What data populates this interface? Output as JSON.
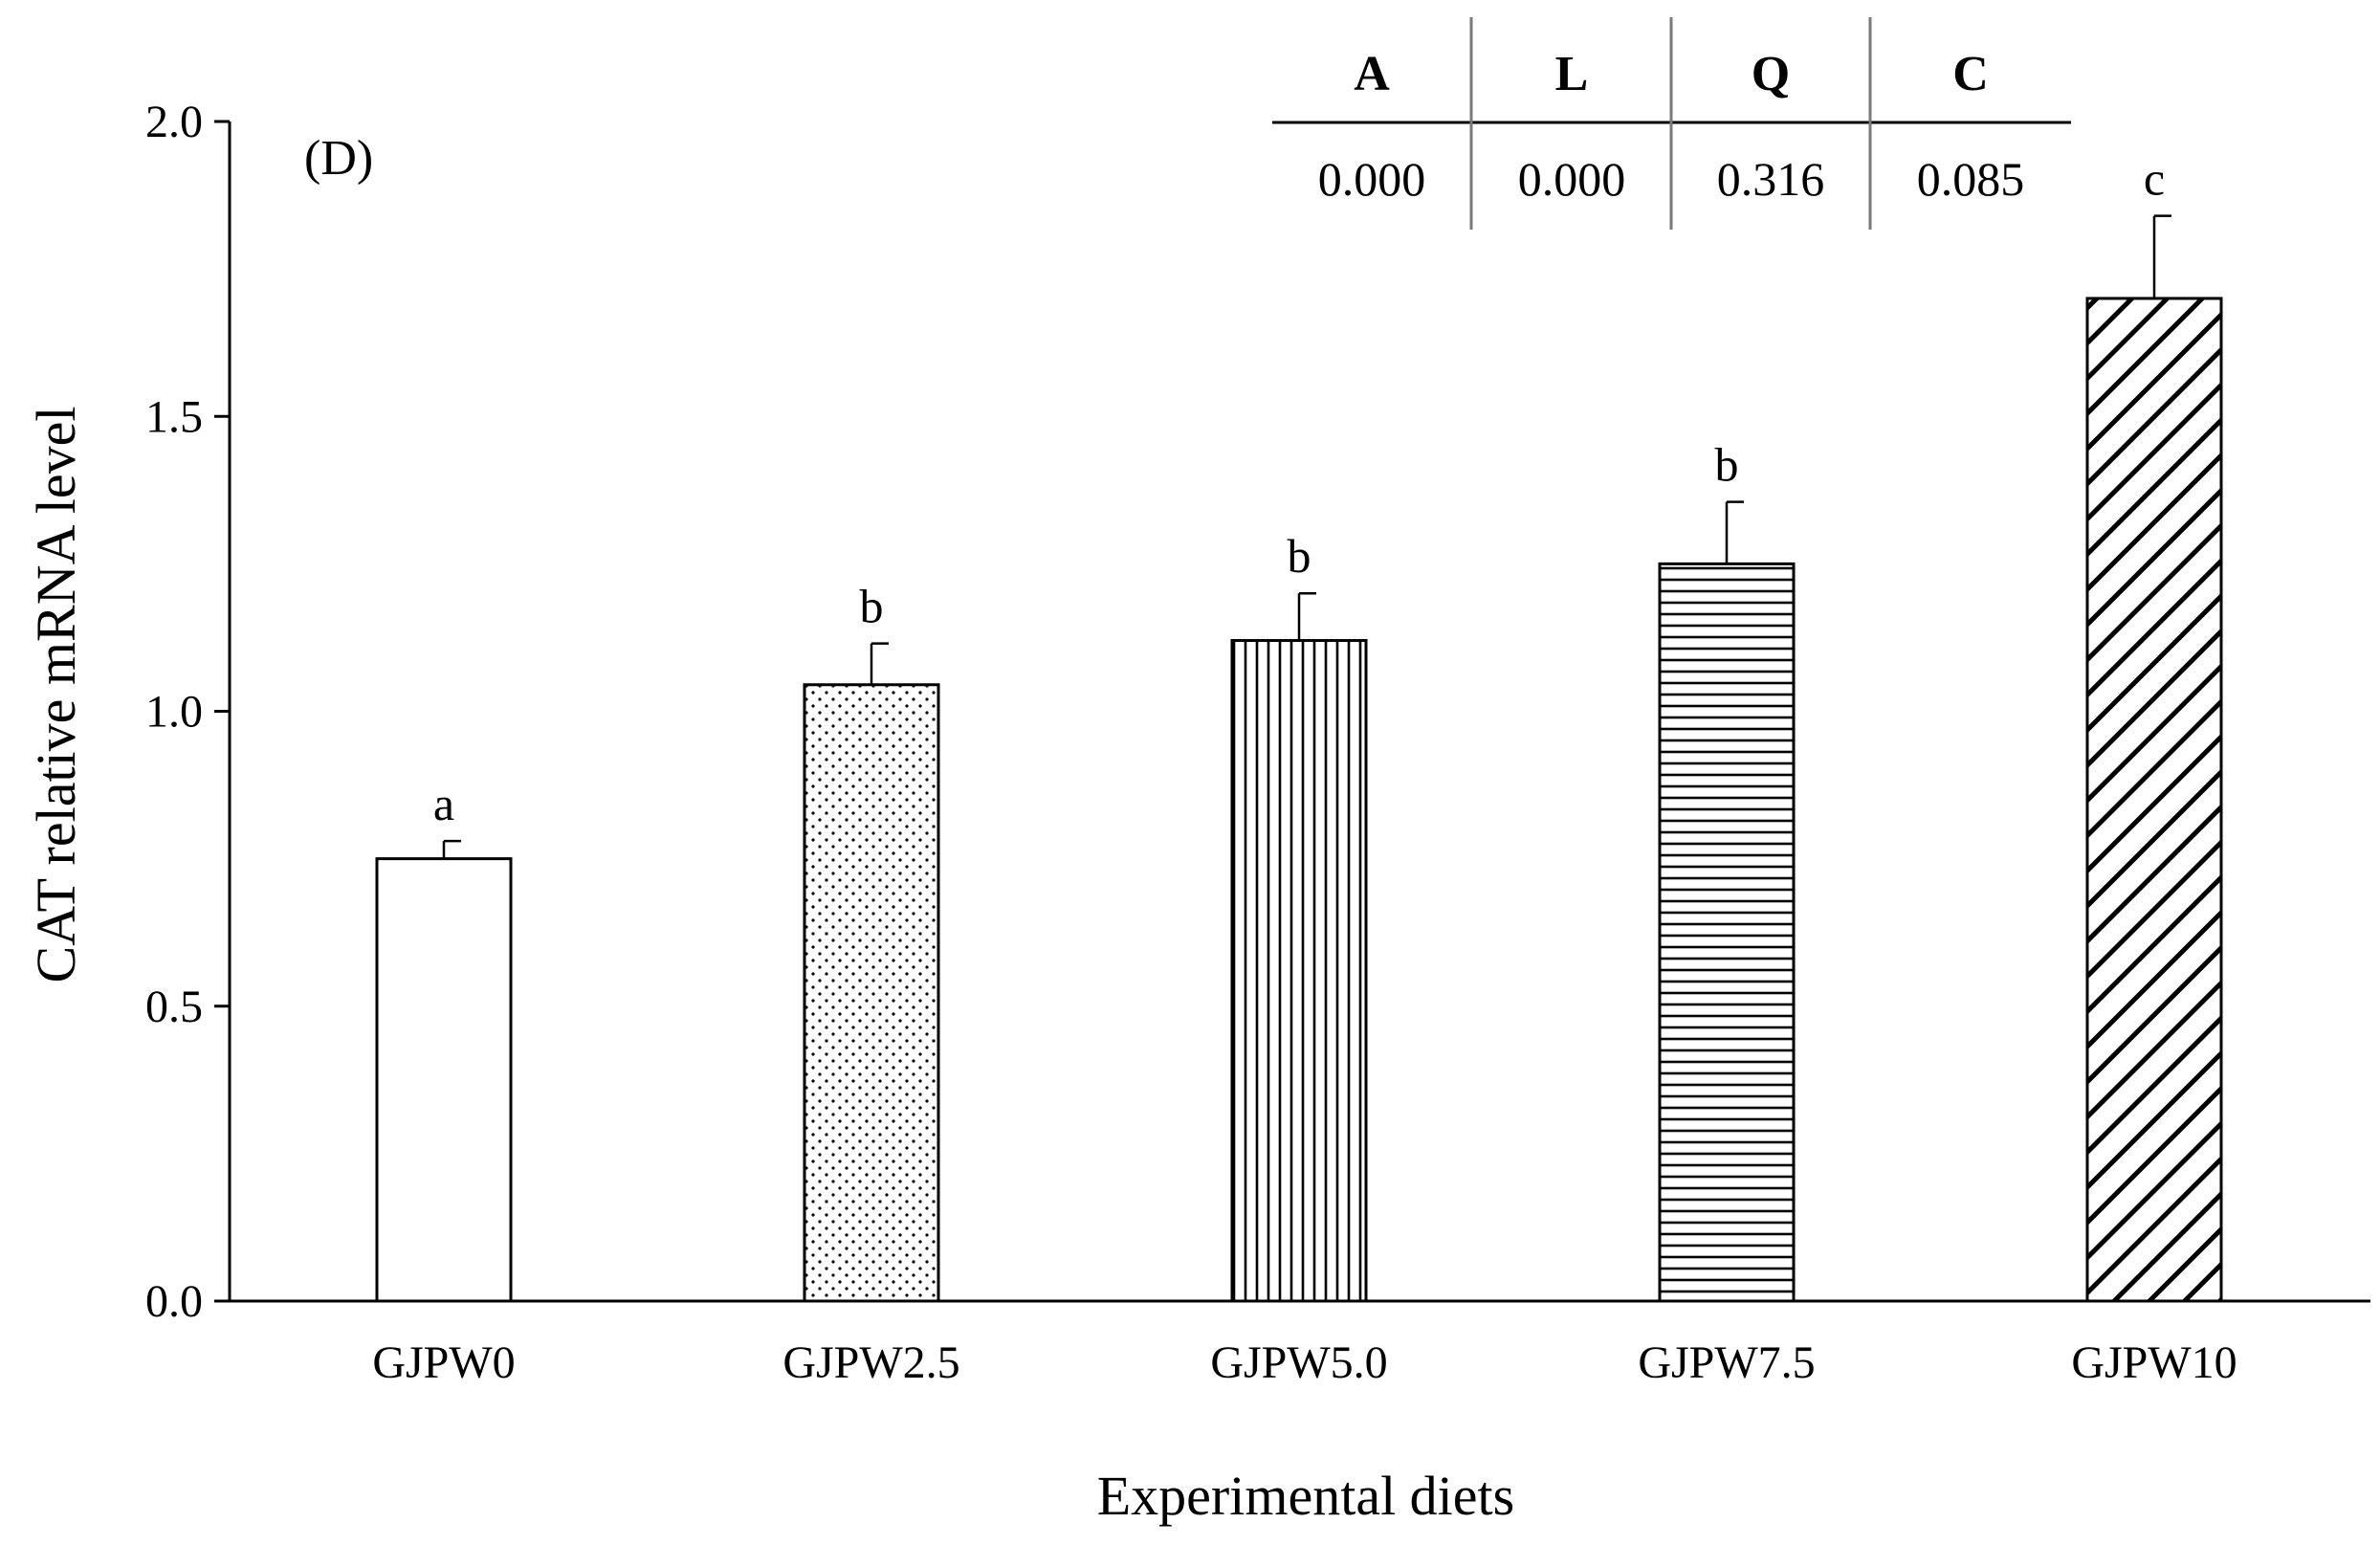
{
  "chart_data": {
    "type": "bar",
    "panel_label": "(D)",
    "ylabel": "CAT relative mRNA level",
    "xlabel": "Experimental diets",
    "ylim": [
      0,
      2.0
    ],
    "yticks": [
      "0.0",
      "0.5",
      "1.0",
      "1.5",
      "2.0"
    ],
    "categories": [
      "GJPW0",
      "GJPW2.5",
      "GJPW5.0",
      "GJPW7.5",
      "GJPW10"
    ],
    "values": [
      0.75,
      1.045,
      1.12,
      1.25,
      1.7
    ],
    "errors": [
      0.03,
      0.07,
      0.08,
      0.105,
      0.14
    ],
    "significance": [
      "a",
      "b",
      "b",
      "b",
      "c"
    ],
    "patterns": [
      "none",
      "dots",
      "vertical",
      "horizontal",
      "diagonal"
    ],
    "stats_table": {
      "headers": [
        "A",
        "L",
        "Q",
        "C"
      ],
      "values": [
        "0.000",
        "0.000",
        "0.316",
        "0.085"
      ]
    }
  }
}
